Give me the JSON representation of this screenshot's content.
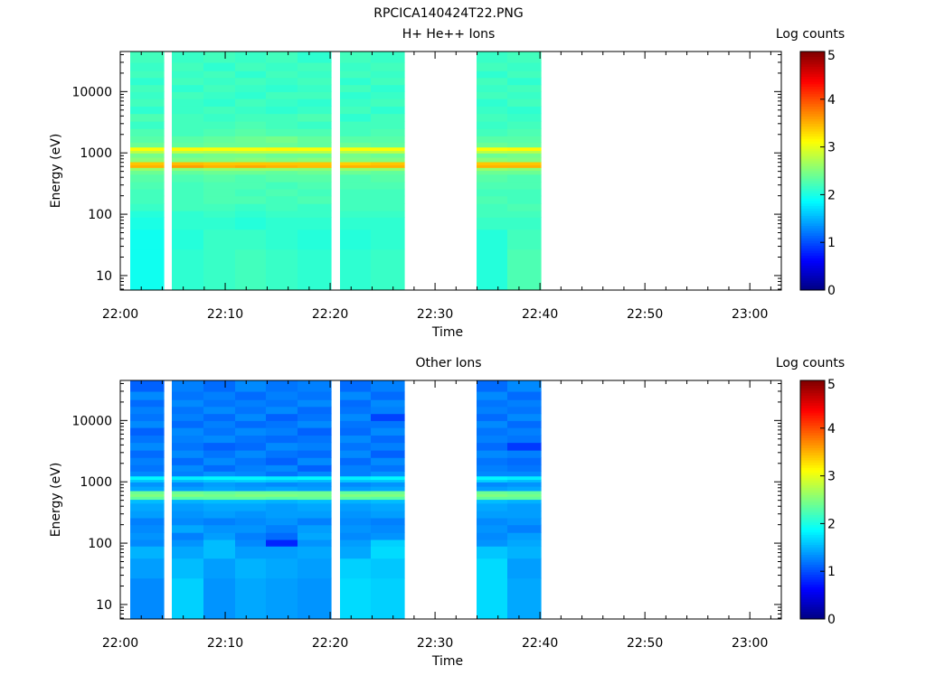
{
  "figure_title": "RPCICA140424T22.PNG",
  "colors": {
    "background": "#ffffff",
    "axes": "#000000"
  },
  "chart_data": [
    {
      "type": "heatmap",
      "title": "H+ He++ Ions",
      "xlabel": "Time",
      "ylabel": "Energy (eV)",
      "colorbar_label": "Log counts",
      "colormap": "jet",
      "x_ticks": [
        "22:00",
        "22:10",
        "22:20",
        "22:30",
        "22:40",
        "22:50",
        "23:00"
      ],
      "xlim": [
        "22:00",
        "23:03"
      ],
      "y_scale": "log",
      "y_ticks": [
        "10",
        "100",
        "1000",
        "10000"
      ],
      "ylim": [
        5.8,
        45000
      ],
      "colorbar_ticks": [
        "0",
        "1",
        "2",
        "3",
        "4",
        "5"
      ],
      "clim": [
        0,
        5
      ],
      "time_bins": [
        "22:01",
        "22:05",
        "22:08",
        "22:11",
        "22:14",
        "22:17",
        "22:21",
        "22:24",
        "22:34",
        "22:37"
      ],
      "energy_edges": [
        6,
        27,
        57,
        90,
        115,
        150,
        200,
        260,
        340,
        450,
        520,
        580,
        640,
        720,
        850,
        1000,
        1100,
        1250,
        1500,
        1900,
        2500,
        3300,
        4400,
        5800,
        7700,
        10000,
        13000,
        17000,
        22000,
        30000,
        45000
      ],
      "log_counts": [
        [
          1.95,
          2.1,
          2.15,
          2.2,
          2.15,
          2.1,
          2.1,
          2.15,
          2.05,
          2.25
        ],
        [
          1.95,
          2.05,
          2.15,
          2.15,
          2.1,
          2.05,
          2.05,
          2.1,
          2.05,
          2.2
        ],
        [
          2.0,
          2.1,
          2.1,
          2.05,
          2.1,
          2.1,
          2.1,
          2.1,
          2.15,
          2.15
        ],
        [
          2.05,
          2.1,
          2.15,
          2.1,
          2.15,
          2.15,
          2.15,
          2.15,
          2.2,
          2.2
        ],
        [
          2.15,
          2.2,
          2.2,
          2.15,
          2.2,
          2.15,
          2.2,
          2.2,
          2.2,
          2.25
        ],
        [
          2.2,
          2.2,
          2.25,
          2.25,
          2.2,
          2.25,
          2.2,
          2.2,
          2.25,
          2.2
        ],
        [
          2.2,
          2.2,
          2.25,
          2.2,
          2.25,
          2.2,
          2.2,
          2.2,
          2.2,
          2.2
        ],
        [
          2.25,
          2.2,
          2.25,
          2.25,
          2.2,
          2.25,
          2.25,
          2.25,
          2.25,
          2.25
        ],
        [
          2.3,
          2.25,
          2.3,
          2.25,
          2.3,
          2.3,
          2.25,
          2.3,
          2.3,
          2.25
        ],
        [
          2.4,
          2.35,
          2.4,
          2.4,
          2.35,
          2.4,
          2.4,
          2.35,
          2.4,
          2.4
        ],
        [
          2.6,
          2.55,
          2.6,
          2.6,
          2.6,
          2.55,
          2.6,
          2.6,
          2.6,
          2.55
        ],
        [
          3.5,
          3.6,
          3.5,
          3.55,
          3.5,
          3.45,
          3.5,
          3.5,
          3.5,
          3.5
        ],
        [
          3.4,
          3.45,
          3.4,
          3.4,
          3.4,
          3.4,
          3.35,
          3.4,
          3.4,
          3.4
        ],
        [
          2.55,
          2.5,
          2.5,
          2.55,
          2.5,
          2.55,
          2.5,
          2.5,
          2.55,
          2.5
        ],
        [
          2.45,
          2.4,
          2.45,
          2.45,
          2.4,
          2.4,
          2.45,
          2.4,
          2.4,
          2.45
        ],
        [
          2.8,
          2.8,
          2.75,
          2.8,
          2.8,
          2.8,
          2.75,
          2.8,
          2.8,
          2.75
        ],
        [
          3.1,
          3.15,
          3.1,
          3.1,
          3.15,
          3.1,
          3.1,
          3.1,
          3.1,
          3.15
        ],
        [
          2.4,
          2.35,
          2.4,
          2.4,
          2.4,
          2.35,
          2.4,
          2.35,
          2.4,
          2.35
        ],
        [
          2.3,
          2.3,
          2.35,
          2.4,
          2.45,
          2.35,
          2.3,
          2.3,
          2.3,
          2.3
        ],
        [
          2.25,
          2.2,
          2.25,
          2.3,
          2.25,
          2.25,
          2.2,
          2.25,
          2.2,
          2.25
        ],
        [
          2.15,
          2.2,
          2.2,
          2.25,
          2.2,
          2.15,
          2.2,
          2.2,
          2.15,
          2.2
        ],
        [
          2.25,
          2.2,
          2.15,
          2.2,
          2.2,
          2.25,
          2.1,
          2.2,
          2.2,
          2.15
        ],
        [
          2.1,
          2.15,
          2.2,
          2.15,
          2.1,
          2.15,
          2.2,
          2.1,
          2.15,
          2.1
        ],
        [
          2.2,
          2.15,
          2.1,
          2.2,
          2.15,
          2.1,
          2.15,
          2.2,
          2.1,
          2.2
        ],
        [
          2.15,
          2.2,
          2.15,
          2.1,
          2.2,
          2.2,
          2.1,
          2.15,
          2.2,
          2.15
        ],
        [
          2.2,
          2.1,
          2.2,
          2.15,
          2.1,
          2.15,
          2.2,
          2.1,
          2.15,
          2.2
        ],
        [
          2.1,
          2.2,
          2.15,
          2.2,
          2.15,
          2.2,
          2.1,
          2.2,
          2.2,
          2.1
        ],
        [
          2.2,
          2.15,
          2.2,
          2.1,
          2.2,
          2.15,
          2.2,
          2.15,
          2.1,
          2.2
        ],
        [
          2.15,
          2.2,
          2.1,
          2.2,
          2.15,
          2.2,
          2.15,
          2.2,
          2.2,
          2.15
        ],
        [
          2.2,
          2.15,
          2.2,
          2.15,
          2.2,
          2.1,
          2.2,
          2.15,
          2.15,
          2.2
        ]
      ]
    },
    {
      "type": "heatmap",
      "title": "Other Ions",
      "xlabel": "Time",
      "ylabel": "Energy (eV)",
      "colorbar_label": "Log counts",
      "colormap": "jet",
      "x_ticks": [
        "22:00",
        "22:10",
        "22:20",
        "22:30",
        "22:40",
        "22:50",
        "23:00"
      ],
      "xlim": [
        "22:00",
        "23:03"
      ],
      "y_scale": "log",
      "y_ticks": [
        "10",
        "100",
        "1000",
        "10000"
      ],
      "ylim": [
        5.8,
        45000
      ],
      "colorbar_ticks": [
        "0",
        "1",
        "2",
        "3",
        "4",
        "5"
      ],
      "clim": [
        0,
        5
      ],
      "time_bins": [
        "22:01",
        "22:05",
        "22:08",
        "22:11",
        "22:14",
        "22:17",
        "22:21",
        "22:24",
        "22:34",
        "22:37"
      ],
      "energy_edges": [
        6,
        27,
        57,
        90,
        115,
        150,
        200,
        260,
        340,
        450,
        520,
        580,
        640,
        720,
        850,
        1000,
        1100,
        1250,
        1500,
        1900,
        2500,
        3300,
        4400,
        5800,
        7700,
        10000,
        13000,
        17000,
        22000,
        30000,
        45000
      ],
      "log_counts": [
        [
          1.3,
          1.65,
          1.35,
          1.45,
          1.4,
          1.35,
          1.7,
          1.65,
          1.7,
          1.45
        ],
        [
          1.4,
          1.55,
          1.4,
          1.5,
          1.45,
          1.4,
          1.65,
          1.6,
          1.7,
          1.4
        ],
        [
          1.5,
          1.45,
          1.55,
          1.4,
          1.4,
          1.45,
          1.45,
          1.7,
          1.6,
          1.5
        ],
        [
          1.3,
          1.35,
          1.55,
          1.3,
          0.8,
          1.35,
          1.4,
          1.65,
          1.35,
          1.45
        ],
        [
          1.35,
          1.25,
          1.4,
          1.25,
          1.15,
          1.45,
          1.3,
          1.35,
          1.3,
          1.4
        ],
        [
          1.3,
          1.45,
          1.35,
          1.35,
          1.25,
          1.4,
          1.35,
          1.3,
          1.35,
          1.25
        ],
        [
          1.25,
          1.3,
          1.25,
          1.3,
          1.35,
          1.25,
          1.3,
          1.25,
          1.3,
          1.35
        ],
        [
          1.4,
          1.35,
          1.4,
          1.35,
          1.4,
          1.4,
          1.35,
          1.4,
          1.4,
          1.4
        ],
        [
          1.45,
          1.4,
          1.45,
          1.45,
          1.4,
          1.45,
          1.4,
          1.45,
          1.45,
          1.4
        ],
        [
          1.55,
          1.5,
          1.55,
          1.55,
          1.5,
          1.55,
          1.5,
          1.55,
          1.55,
          1.5
        ],
        [
          2.35,
          2.3,
          2.35,
          2.35,
          2.3,
          2.35,
          2.35,
          2.3,
          2.35,
          2.35
        ],
        [
          2.5,
          2.5,
          2.45,
          2.5,
          2.5,
          2.45,
          2.5,
          2.5,
          2.5,
          2.45
        ],
        [
          2.4,
          2.4,
          2.35,
          2.4,
          2.4,
          2.4,
          2.35,
          2.4,
          2.4,
          2.35
        ],
        [
          1.45,
          1.4,
          1.45,
          1.4,
          1.45,
          1.4,
          1.4,
          1.45,
          1.4,
          1.45
        ],
        [
          1.35,
          1.3,
          1.4,
          1.35,
          1.3,
          1.35,
          1.3,
          1.35,
          1.3,
          1.35
        ],
        [
          1.6,
          1.55,
          1.6,
          1.65,
          1.6,
          1.55,
          1.6,
          1.6,
          1.65,
          1.55
        ],
        [
          1.85,
          1.8,
          1.85,
          1.85,
          1.8,
          1.85,
          1.8,
          1.85,
          1.85,
          1.8
        ],
        [
          1.3,
          1.25,
          1.35,
          1.3,
          1.2,
          1.3,
          1.25,
          1.35,
          1.3,
          1.3
        ],
        [
          1.2,
          1.3,
          1.15,
          1.25,
          1.3,
          1.1,
          1.25,
          1.2,
          1.25,
          1.2
        ],
        [
          1.25,
          1.15,
          1.3,
          1.2,
          1.1,
          1.3,
          1.15,
          1.3,
          1.2,
          1.15
        ],
        [
          1.15,
          1.3,
          1.2,
          1.3,
          1.2,
          1.15,
          1.3,
          1.1,
          1.3,
          1.25
        ],
        [
          1.3,
          1.2,
          1.1,
          1.15,
          1.3,
          1.25,
          1.2,
          1.25,
          1.15,
          0.9
        ],
        [
          1.2,
          1.25,
          1.3,
          1.2,
          1.15,
          1.2,
          1.3,
          1.15,
          1.25,
          1.2
        ],
        [
          1.1,
          1.3,
          1.2,
          1.3,
          1.25,
          1.1,
          1.15,
          1.3,
          1.2,
          1.25
        ],
        [
          1.3,
          1.15,
          1.25,
          1.15,
          1.2,
          1.3,
          1.2,
          1.2,
          1.3,
          1.15
        ],
        [
          1.2,
          1.25,
          1.15,
          1.3,
          1.1,
          1.2,
          1.3,
          0.95,
          1.15,
          1.3
        ],
        [
          1.25,
          1.2,
          1.3,
          1.2,
          1.3,
          1.15,
          1.2,
          1.25,
          1.25,
          1.2
        ],
        [
          1.15,
          1.3,
          1.2,
          1.25,
          1.2,
          1.3,
          1.15,
          1.3,
          1.2,
          1.25
        ],
        [
          1.3,
          1.2,
          1.25,
          1.15,
          1.25,
          1.2,
          1.3,
          1.15,
          1.3,
          1.15
        ],
        [
          1.1,
          1.25,
          1.15,
          1.3,
          1.2,
          1.25,
          1.15,
          1.25,
          1.15,
          1.3
        ]
      ]
    }
  ]
}
